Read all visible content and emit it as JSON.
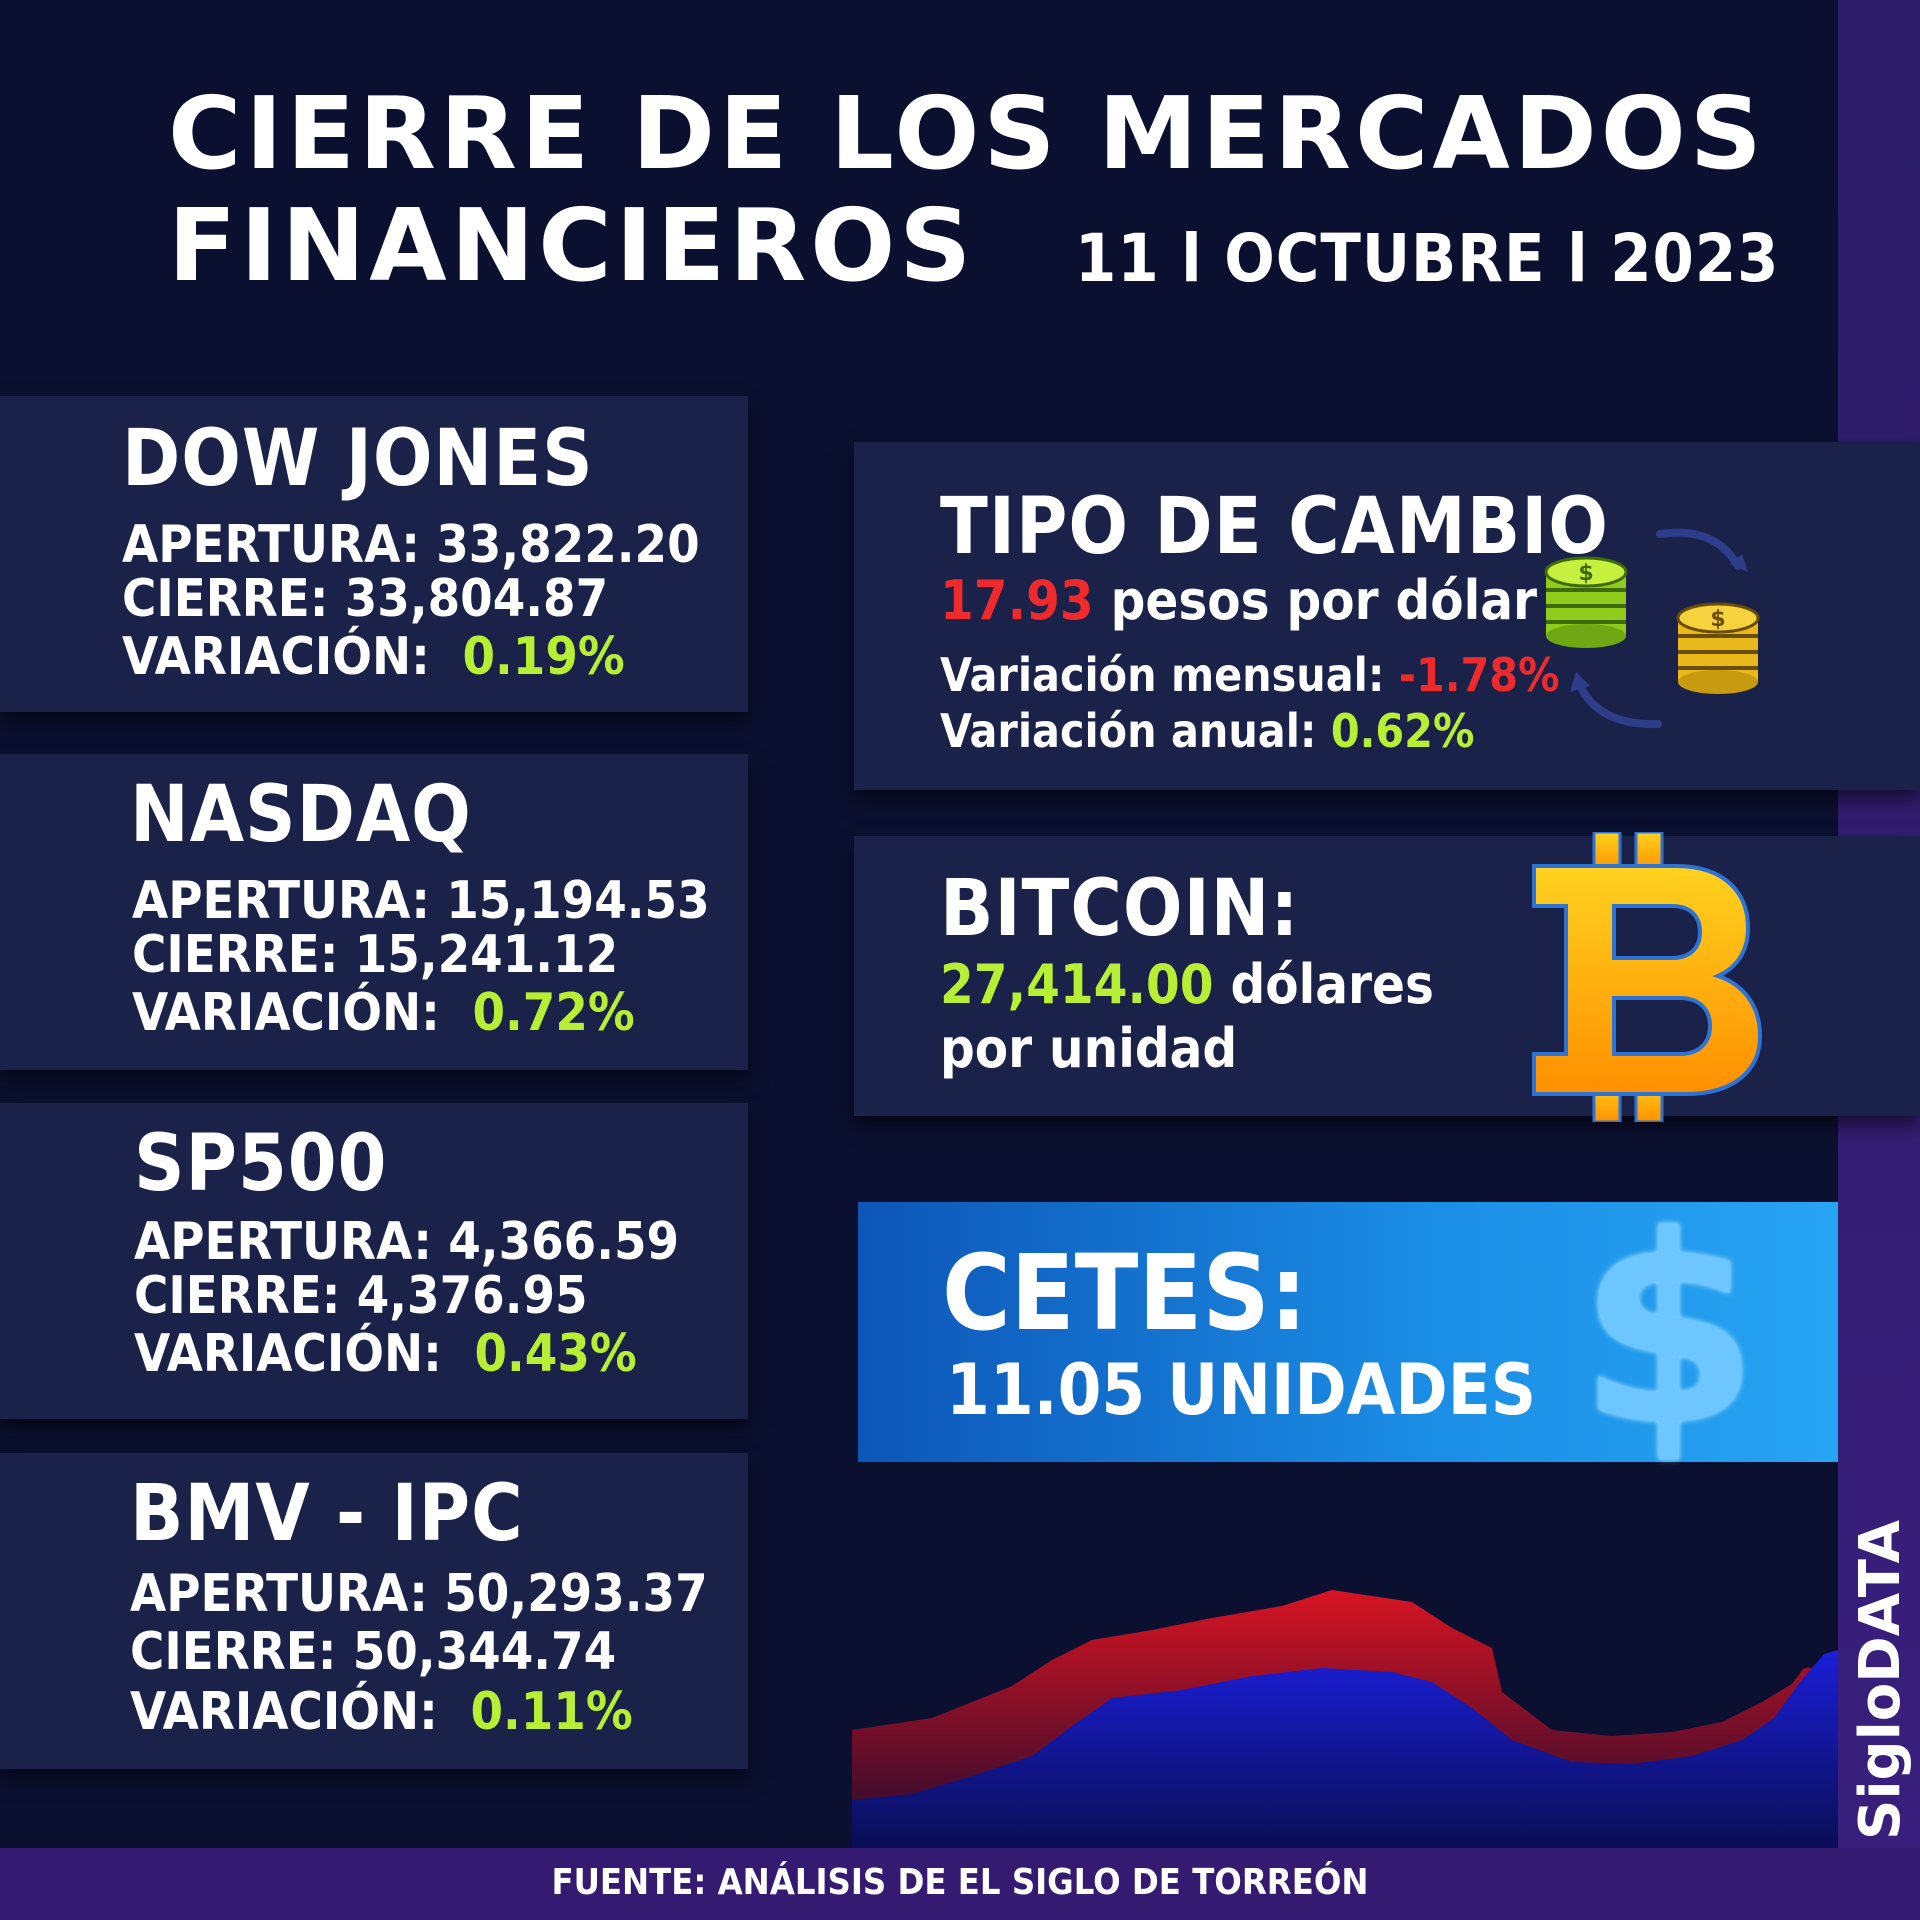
{
  "header": {
    "title_line1": "CIERRE DE LOS MERCADOS",
    "title_line2": "FINANCIEROS",
    "date": "11 l OCTUBRE l 2023"
  },
  "indices": [
    {
      "name": "DOW JONES",
      "apertura_label": "APERTURA:",
      "apertura": "33,822.20",
      "cierre_label": "CIERRE:",
      "cierre": "33,804.87",
      "variacion_label": "VARIACIÓN:",
      "variacion": "0.19%"
    },
    {
      "name": "NASDAQ",
      "apertura_label": "APERTURA:",
      "apertura": "15,194.53",
      "cierre_label": "CIERRE:",
      "cierre": "15,241.12",
      "variacion_label": "VARIACIÓN:",
      "variacion": "0.72%"
    },
    {
      "name": "SP500",
      "apertura_label": "APERTURA:",
      "apertura": "4,366.59",
      "cierre_label": "CIERRE:",
      "cierre": "4,376.95",
      "variacion_label": "VARIACIÓN:",
      "variacion": "0.43%"
    },
    {
      "name": "BMV - IPC",
      "apertura_label": "APERTURA:",
      "apertura": "50,293.37",
      "cierre_label": "CIERRE:",
      "cierre": "50,344.74",
      "variacion_label": "VARIACIÓN:",
      "variacion": "0.11%"
    }
  ],
  "tipo_cambio": {
    "title": "TIPO DE CAMBIO",
    "value": "17.93",
    "unit": "pesos por dólar",
    "mensual_label": "Variación mensual:",
    "mensual": "-1.78%",
    "anual_label": "Variación anual:",
    "anual": "0.62%",
    "icon": "currency-exchange-coins-icon"
  },
  "bitcoin": {
    "title": "BITCOIN:",
    "value": "27,414.00",
    "unit_line1": "dólares",
    "unit_line2": "por unidad",
    "icon": "bitcoin-icon"
  },
  "cetes": {
    "title": "CETES:",
    "value": "11.05 UNIDADES",
    "icon": "dollar-sign-icon"
  },
  "footer": {
    "source": "FUENTE: ANÁLISIS DE EL SIGLO DE TORREÓN",
    "brand": "SigloDATA"
  },
  "colors": {
    "background": "#0b1030",
    "card": "#1a2249",
    "positive": "#b7ef34",
    "negative": "#ef2a2d",
    "accent_purple": "#351a72"
  }
}
